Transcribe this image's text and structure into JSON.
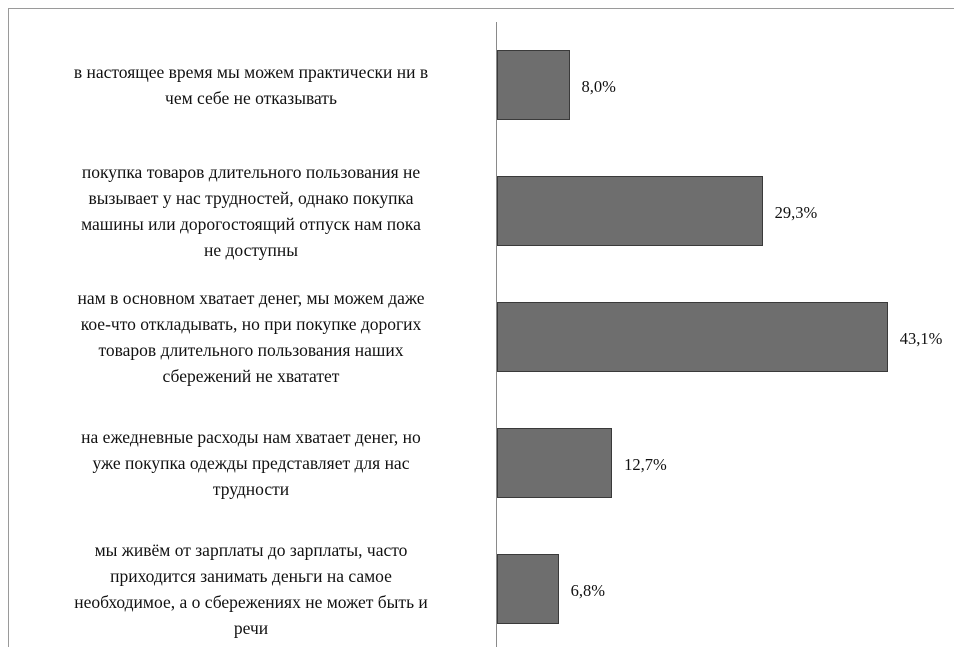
{
  "chart_data": {
    "type": "bar",
    "orientation": "horizontal",
    "categories": [
      "в настоящее время мы можем практически ни в\nчем себе не отказывать",
      "покупка товаров длительного  пользования не\nвызывает у нас трудностей, однако покупка\nмашины или дорогостоящий отпуск нам пока\nне доступны",
      "нам в основном хватает денег, мы можем даже\nкое-что откладывать, но при покупке дорогих\nтоваров длительного  пользования наших\nсбережений не хвататет",
      "на ежедневные расходы нам хватает денег, но\nуже покупка одежды представляет для нас\nтрудности",
      "мы живём от зарплаты до зарплаты, часто\nприходится занимать деньги на самое\nнеобходимое, а о сбережениях не может быть и\nречи"
    ],
    "values": [
      8.0,
      29.3,
      43.1,
      12.7,
      6.8
    ],
    "value_labels": [
      "8,0%",
      "29,3%",
      "43,1%",
      "12,7%",
      "6,8%"
    ],
    "color": "#6e6e6e",
    "xlim": [
      0,
      45
    ]
  }
}
